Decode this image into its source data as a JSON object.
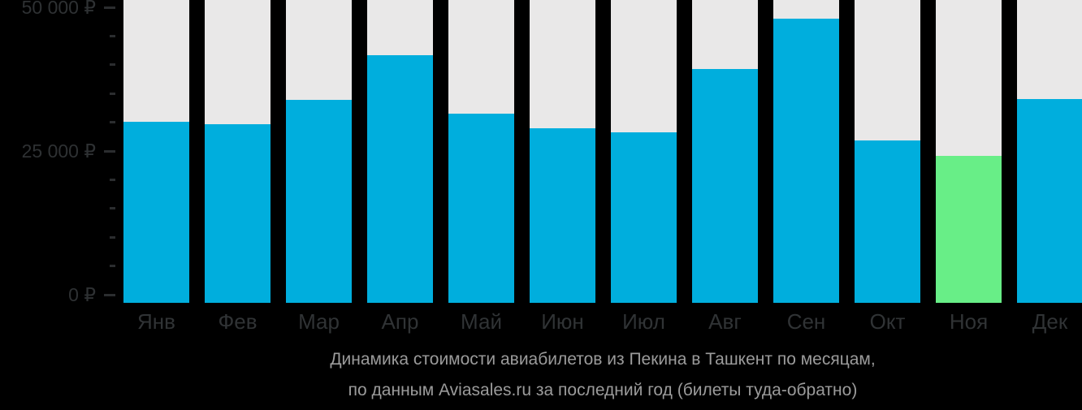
{
  "chart_data": {
    "type": "bar",
    "title": "Динамика стоимости авиабилетов из Пекина в Ташкент по месяцам,",
    "subtitle": "по данным Aviasales.ru за последний год (билеты туда-обратно)",
    "categories": [
      "Янв",
      "Фев",
      "Мар",
      "Апр",
      "Май",
      "Июн",
      "Июл",
      "Авг",
      "Сен",
      "Окт",
      "Ноя",
      "Дек"
    ],
    "values": [
      30100,
      29600,
      33900,
      41700,
      31500,
      28900,
      28300,
      39200,
      48000,
      26800,
      24200,
      34100
    ],
    "highlight_index": 10,
    "highlighted_category": "Ноя",
    "xlabel": "",
    "ylabel": "",
    "ylim": [
      0,
      50000
    ],
    "y_tick_values": [
      50000,
      25000,
      0
    ],
    "y_tick_labels": [
      "50 000 ₽",
      "25 000 ₽",
      "0 ₽"
    ],
    "minor_tick_step": 5000,
    "grid": false,
    "legend": "none",
    "currency": "₽",
    "colors": {
      "background": "#000000",
      "bar": "#00aedd",
      "bar_highlight": "#68ee87",
      "bar_background": "#e9e8e8",
      "axis_label": "#2e3133",
      "tick_mark": "#2b2d2f",
      "month_label": "#303335",
      "caption": "#9b9b9b"
    }
  }
}
